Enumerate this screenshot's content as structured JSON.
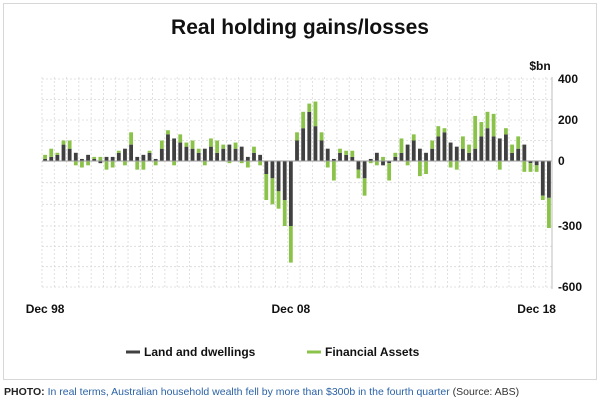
{
  "caption": {
    "lead": "PHOTO:",
    "link_text": "In real terms, Australian household wealth fell by more than $300b in the fourth quarter",
    "source": "(Source: ABS)"
  },
  "chart_data": {
    "type": "bar",
    "title": "Real holding gains/losses",
    "ylabel": "$bn",
    "xlabel": "",
    "ylim": [
      -600,
      400
    ],
    "y_ticks": [
      400,
      200,
      0,
      -300,
      -600
    ],
    "y_tick_labels": [
      "400",
      "200",
      "0",
      "-300",
      "-600"
    ],
    "x_tick_labels": [
      "Dec 98",
      "Dec 08",
      "Dec 18"
    ],
    "x_tick_index": [
      0,
      40,
      80
    ],
    "grid": true,
    "legend_position": "bottom",
    "stacked": true,
    "categories_note": "quarterly, Dec 1998 to Dec 2018",
    "series": [
      {
        "name": "Land and dwellings",
        "color": "#404040",
        "values": [
          10,
          20,
          30,
          80,
          60,
          40,
          10,
          30,
          10,
          -10,
          20,
          20,
          40,
          60,
          80,
          20,
          30,
          40,
          10,
          60,
          130,
          110,
          90,
          70,
          60,
          40,
          60,
          70,
          40,
          60,
          80,
          60,
          70,
          20,
          40,
          30,
          -60,
          -80,
          -140,
          -180,
          -300,
          100,
          160,
          240,
          170,
          100,
          60,
          10,
          40,
          30,
          20,
          -40,
          -80,
          10,
          40,
          -20,
          -10,
          20,
          40,
          80,
          100,
          60,
          40,
          60,
          120,
          140,
          90,
          70,
          60,
          40,
          60,
          120,
          160,
          120,
          110,
          130,
          40,
          60,
          80,
          -10,
          -20,
          -160,
          -170
        ]
      },
      {
        "name": "Financial Assets",
        "color": "#8bc34a",
        "values": [
          20,
          40,
          10,
          20,
          40,
          -20,
          -30,
          -20,
          10,
          20,
          -40,
          -30,
          10,
          -20,
          60,
          -40,
          -40,
          10,
          -20,
          40,
          20,
          -20,
          40,
          20,
          40,
          20,
          -20,
          40,
          60,
          20,
          -10,
          30,
          -10,
          -30,
          30,
          -20,
          -120,
          -120,
          -80,
          -120,
          -180,
          40,
          80,
          40,
          120,
          40,
          -30,
          -90,
          20,
          20,
          30,
          -40,
          -80,
          -10,
          -20,
          20,
          -80,
          20,
          70,
          -20,
          30,
          -70,
          -60,
          40,
          50,
          20,
          -30,
          -40,
          60,
          40,
          160,
          70,
          80,
          110,
          -40,
          30,
          40,
          60,
          -50,
          -40,
          -30,
          -20,
          -140
        ]
      }
    ],
    "legend": [
      "Land and dwellings",
      "Financial Assets"
    ]
  }
}
